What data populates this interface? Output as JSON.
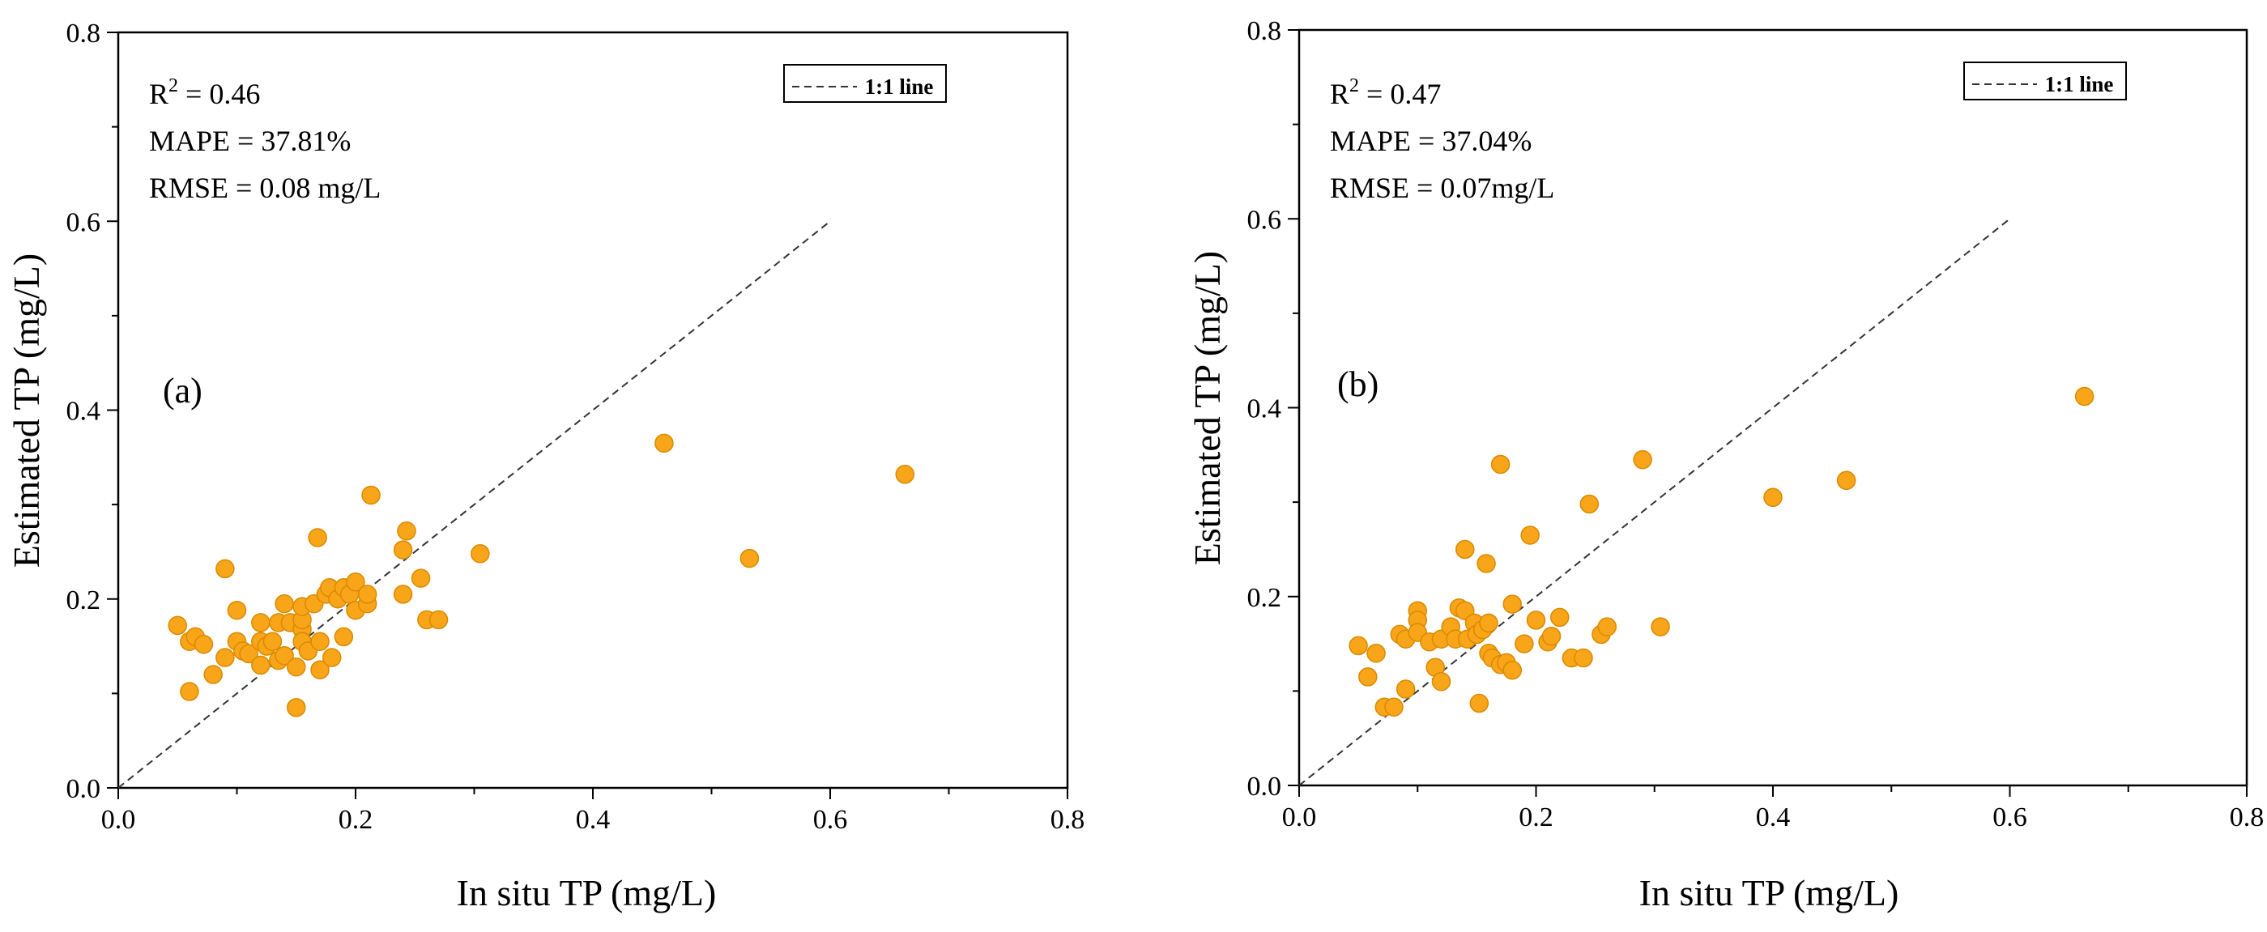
{
  "chart_data": [
    {
      "type": "scatter",
      "panel_label": "(a)",
      "xlabel": "In situ TP (mg/L)",
      "ylabel": "Estimated TP (mg/L)",
      "xlim": [
        0,
        0.8
      ],
      "ylim": [
        0,
        0.8
      ],
      "x_ticks": [
        "0.0",
        "0.2",
        "0.4",
        "0.6",
        "0.8"
      ],
      "y_ticks": [
        "0.0",
        "0.2",
        "0.4",
        "0.6",
        "0.8"
      ],
      "legend": {
        "label": "1:1 line",
        "placement": "top-right"
      },
      "one_to_one_line": {
        "from": [
          0,
          0
        ],
        "to": [
          0.6,
          0.6
        ]
      },
      "stats": {
        "r2_prefix": "R",
        "r2_sup": "2",
        "r2_value": " = 0.46",
        "mape": "MAPE = 37.81%",
        "rmse": "RMSE = 0.08 mg/L"
      },
      "marker_color": "#f9a51a",
      "marker_edge": "#d98a00",
      "points": [
        [
          0.05,
          0.172
        ],
        [
          0.06,
          0.102
        ],
        [
          0.06,
          0.155
        ],
        [
          0.065,
          0.16
        ],
        [
          0.072,
          0.152
        ],
        [
          0.08,
          0.12
        ],
        [
          0.09,
          0.232
        ],
        [
          0.09,
          0.138
        ],
        [
          0.1,
          0.155
        ],
        [
          0.1,
          0.188
        ],
        [
          0.105,
          0.145
        ],
        [
          0.11,
          0.142
        ],
        [
          0.12,
          0.175
        ],
        [
          0.12,
          0.155
        ],
        [
          0.12,
          0.13
        ],
        [
          0.125,
          0.15
        ],
        [
          0.13,
          0.155
        ],
        [
          0.135,
          0.135
        ],
        [
          0.135,
          0.175
        ],
        [
          0.14,
          0.14
        ],
        [
          0.14,
          0.195
        ],
        [
          0.145,
          0.175
        ],
        [
          0.15,
          0.128
        ],
        [
          0.15,
          0.085
        ],
        [
          0.155,
          0.168
        ],
        [
          0.155,
          0.155
        ],
        [
          0.155,
          0.178
        ],
        [
          0.155,
          0.192
        ],
        [
          0.16,
          0.145
        ],
        [
          0.165,
          0.195
        ],
        [
          0.168,
          0.265
        ],
        [
          0.17,
          0.155
        ],
        [
          0.17,
          0.125
        ],
        [
          0.175,
          0.205
        ],
        [
          0.178,
          0.212
        ],
        [
          0.18,
          0.138
        ],
        [
          0.185,
          0.2
        ],
        [
          0.19,
          0.16
        ],
        [
          0.19,
          0.212
        ],
        [
          0.195,
          0.205
        ],
        [
          0.2,
          0.188
        ],
        [
          0.2,
          0.218
        ],
        [
          0.21,
          0.195
        ],
        [
          0.21,
          0.205
        ],
        [
          0.213,
          0.31
        ],
        [
          0.24,
          0.205
        ],
        [
          0.24,
          0.252
        ],
        [
          0.243,
          0.272
        ],
        [
          0.255,
          0.222
        ],
        [
          0.26,
          0.178
        ],
        [
          0.27,
          0.178
        ],
        [
          0.305,
          0.248
        ],
        [
          0.46,
          0.365
        ],
        [
          0.532,
          0.243
        ],
        [
          0.663,
          0.332
        ]
      ]
    },
    {
      "type": "scatter",
      "panel_label": "(b)",
      "xlabel": "In situ TP (mg/L)",
      "ylabel": "Estimated TP (mg/L)",
      "xlim": [
        0,
        0.8
      ],
      "ylim": [
        0,
        0.8
      ],
      "x_ticks": [
        "0.0",
        "0.2",
        "0.4",
        "0.6",
        "0.8"
      ],
      "y_ticks": [
        "0.0",
        "0.2",
        "0.4",
        "0.6",
        "0.8"
      ],
      "legend": {
        "label": "1:1 line",
        "placement": "top-right"
      },
      "one_to_one_line": {
        "from": [
          0,
          0
        ],
        "to": [
          0.6,
          0.6
        ]
      },
      "stats": {
        "r2_prefix": "R",
        "r2_sup": "2",
        "r2_value": " = 0.47",
        "mape": "MAPE = 37.04%",
        "rmse": "RMSE = 0.07mg/L"
      },
      "marker_color": "#f9a51a",
      "marker_edge": "#d98a00",
      "points": [
        [
          0.05,
          0.148
        ],
        [
          0.058,
          0.115
        ],
        [
          0.065,
          0.14
        ],
        [
          0.072,
          0.083
        ],
        [
          0.08,
          0.083
        ],
        [
          0.085,
          0.16
        ],
        [
          0.09,
          0.155
        ],
        [
          0.09,
          0.102
        ],
        [
          0.1,
          0.185
        ],
        [
          0.1,
          0.175
        ],
        [
          0.1,
          0.162
        ],
        [
          0.11,
          0.152
        ],
        [
          0.115,
          0.125
        ],
        [
          0.12,
          0.155
        ],
        [
          0.12,
          0.11
        ],
        [
          0.128,
          0.168
        ],
        [
          0.132,
          0.155
        ],
        [
          0.135,
          0.188
        ],
        [
          0.14,
          0.25
        ],
        [
          0.14,
          0.185
        ],
        [
          0.142,
          0.155
        ],
        [
          0.148,
          0.172
        ],
        [
          0.15,
          0.16
        ],
        [
          0.152,
          0.087
        ],
        [
          0.155,
          0.165
        ],
        [
          0.158,
          0.235
        ],
        [
          0.16,
          0.172
        ],
        [
          0.16,
          0.14
        ],
        [
          0.163,
          0.135
        ],
        [
          0.17,
          0.128
        ],
        [
          0.17,
          0.34
        ],
        [
          0.175,
          0.13
        ],
        [
          0.18,
          0.122
        ],
        [
          0.18,
          0.192
        ],
        [
          0.19,
          0.15
        ],
        [
          0.195,
          0.265
        ],
        [
          0.2,
          0.175
        ],
        [
          0.21,
          0.152
        ],
        [
          0.213,
          0.158
        ],
        [
          0.22,
          0.178
        ],
        [
          0.23,
          0.135
        ],
        [
          0.24,
          0.135
        ],
        [
          0.245,
          0.298
        ],
        [
          0.255,
          0.16
        ],
        [
          0.26,
          0.168
        ],
        [
          0.29,
          0.345
        ],
        [
          0.305,
          0.168
        ],
        [
          0.4,
          0.305
        ],
        [
          0.462,
          0.323
        ],
        [
          0.663,
          0.412
        ]
      ]
    }
  ]
}
